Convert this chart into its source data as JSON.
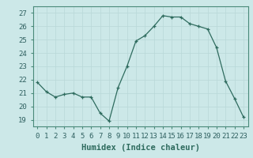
{
  "x": [
    0,
    1,
    2,
    3,
    4,
    5,
    6,
    7,
    8,
    9,
    10,
    11,
    12,
    13,
    14,
    15,
    16,
    17,
    18,
    19,
    20,
    21,
    22,
    23
  ],
  "y": [
    21.8,
    21.1,
    20.7,
    20.9,
    21.0,
    20.7,
    20.7,
    19.5,
    18.9,
    21.4,
    23.0,
    24.9,
    25.3,
    26.0,
    26.8,
    26.7,
    26.7,
    26.2,
    26.0,
    25.8,
    24.4,
    21.9,
    20.6,
    19.2
  ],
  "xlabel": "Humidex (Indice chaleur)",
  "xlim": [
    -0.5,
    23.5
  ],
  "ylim": [
    18.5,
    27.5
  ],
  "yticks": [
    19,
    20,
    21,
    22,
    23,
    24,
    25,
    26,
    27
  ],
  "xticks": [
    0,
    1,
    2,
    3,
    4,
    5,
    6,
    7,
    8,
    9,
    10,
    11,
    12,
    13,
    14,
    15,
    16,
    17,
    18,
    19,
    20,
    21,
    22,
    23
  ],
  "line_color": "#2e6b5e",
  "marker": "+",
  "bg_color": "#cce8e8",
  "grid_color": "#b8d8d8",
  "label_fontsize": 7.5,
  "tick_fontsize": 6.5
}
